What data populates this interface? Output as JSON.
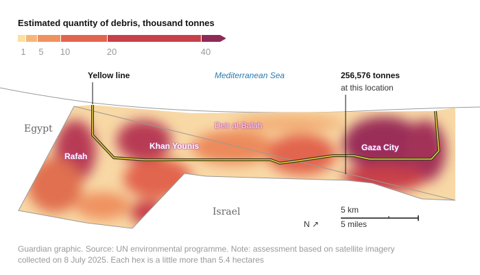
{
  "title": "Estimated quantity of debris, thousand tonnes",
  "legend": {
    "ticks": [
      "1",
      "5",
      "10",
      "20",
      "40"
    ],
    "colors": [
      "#fbe0a0",
      "#f6b67a",
      "#ef9260",
      "#e2654e",
      "#c84148",
      "#8e2a55"
    ]
  },
  "annotations": {
    "yellow_line": "Yellow line",
    "sea": "Mediterranean Sea",
    "tonnes": "256,576 tonnes",
    "tonnes_sub": "at this location"
  },
  "places": {
    "egypt": "Egypt",
    "israel": "Israel",
    "rafah": "Rafah",
    "khan_younis": "Khan Younis",
    "deir_al_balah": "Deir al-Balah",
    "gaza_city": "Gaza City"
  },
  "scale": {
    "km": "5 km",
    "miles": "5 miles",
    "north": "N ↗"
  },
  "note": {
    "line1": "Guardian graphic. Source: UN environmental programme. Note: assessment based on satellite imagery",
    "line2": "collected on 8 July 2025. Each hex is a little more than 5.4 hectares"
  }
}
